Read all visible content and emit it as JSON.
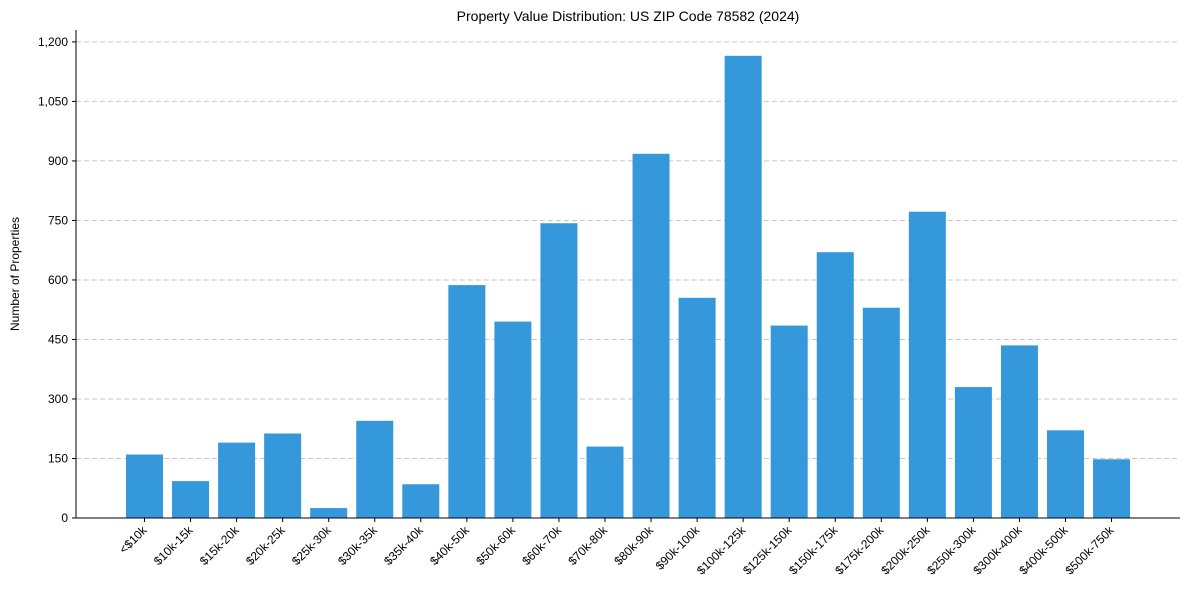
{
  "chart_data": {
    "type": "bar",
    "title": "Property Value Distribution: US ZIP Code 78582 (2024)",
    "xlabel": "",
    "ylabel": "Number of Properties",
    "categories": [
      "<$10k",
      "$10k-15k",
      "$15k-20k",
      "$20k-25k",
      "$25k-30k",
      "$30k-35k",
      "$35k-40k",
      "$40k-50k",
      "$50k-60k",
      "$60k-70k",
      "$70k-80k",
      "$80k-90k",
      "$90k-100k",
      "$100k-125k",
      "$125k-150k",
      "$150k-175k",
      "$175k-200k",
      "$200k-250k",
      "$250k-300k",
      "$300k-400k",
      "$400k-500k",
      "$500k-750k"
    ],
    "values": [
      160,
      93,
      190,
      213,
      25,
      245,
      85,
      587,
      495,
      743,
      180,
      918,
      555,
      1165,
      485,
      670,
      530,
      772,
      330,
      435,
      221,
      148
    ],
    "ylim": [
      0,
      1230
    ],
    "yticks": [
      0,
      150,
      300,
      450,
      600,
      750,
      900,
      1050,
      1200
    ],
    "ytick_labels": [
      "0",
      "150",
      "300",
      "450",
      "600",
      "750",
      "900",
      "1,050",
      "1,200"
    ],
    "grid": true,
    "bar_color": "#3498db"
  }
}
